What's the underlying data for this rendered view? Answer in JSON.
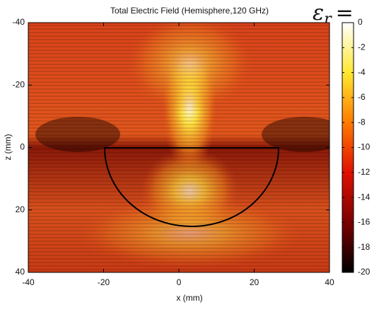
{
  "chart_data": {
    "type": "heatmap",
    "title": "Total Electric Field (Hemisphere,120 GHz)",
    "xlabel": "x (mm)",
    "ylabel": "z (mm)",
    "annotation": [
      "ε",
      "r",
      "="
    ],
    "xlim": [
      -40,
      40
    ],
    "xticks": [
      -40,
      -20,
      0,
      20,
      40
    ],
    "ylim": [
      -40,
      40
    ],
    "yticks": [
      -40,
      -20,
      0,
      20,
      40
    ],
    "yreverse": true,
    "colormap": "hot",
    "clim": [
      -20,
      0
    ],
    "cticks": [
      0,
      -2,
      -4,
      -6,
      -8,
      -10,
      -12,
      -14,
      -16,
      -18,
      -20
    ]
  }
}
